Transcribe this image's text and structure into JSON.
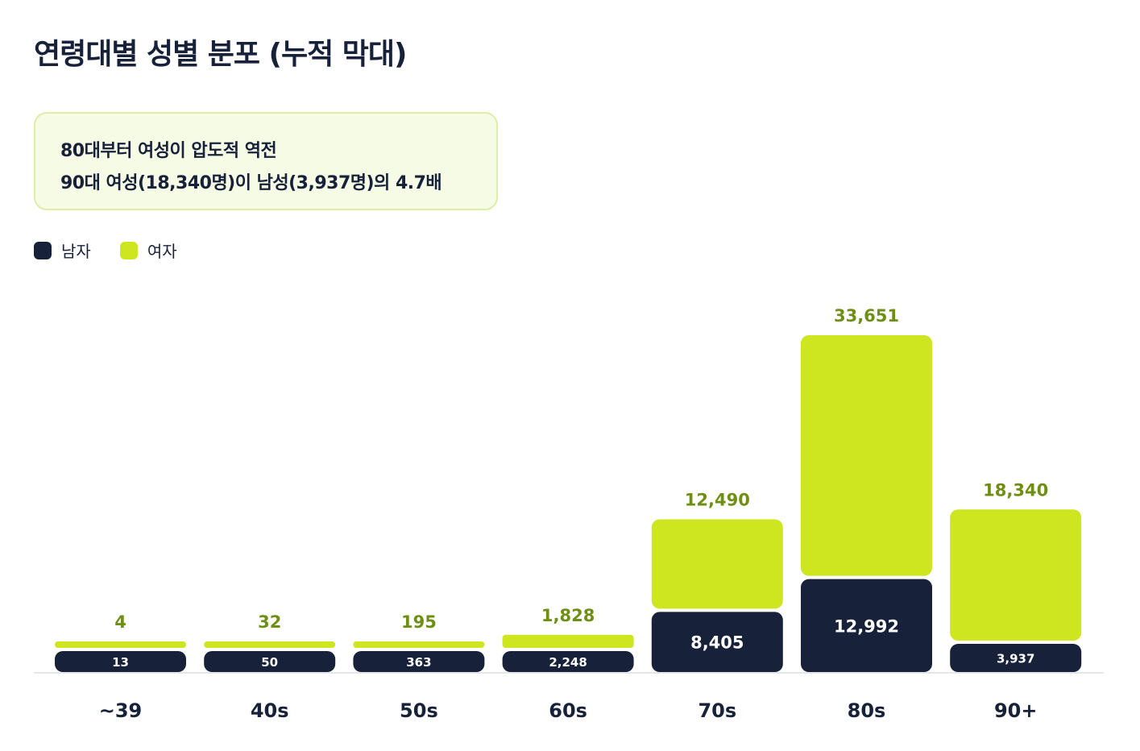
{
  "title": "연령대별 성별 분포 (누적 막대)",
  "callout": {
    "line1": "80대부터 여성이 압도적 역전",
    "line2": "90대 여성(18,340명)이 남성(3,937명)의 4.7배"
  },
  "colors": {
    "male": "#17213a",
    "female": "#cde620",
    "female_label": "#6f8f14",
    "axis": "#e4e6ea"
  },
  "chart_data": {
    "type": "bar",
    "stacked": true,
    "categories": [
      "~39",
      "40s",
      "50s",
      "60s",
      "70s",
      "80s",
      "90+"
    ],
    "series": [
      {
        "name": "남자",
        "values": [
          13,
          50,
          363,
          2248,
          8405,
          12992,
          3937
        ]
      },
      {
        "name": "여자",
        "values": [
          4,
          32,
          195,
          1828,
          12490,
          33651,
          18340
        ]
      }
    ],
    "value_labels": {
      "male": [
        "13",
        "50",
        "363",
        "2,248",
        "8,405",
        "12,992",
        "3,937"
      ],
      "female": [
        "4",
        "32",
        "195",
        "1,828",
        "12,490",
        "33,651",
        "18,340"
      ]
    },
    "legend_placement": "top-left",
    "grid": false,
    "ylim": [
      0,
      46643
    ]
  }
}
